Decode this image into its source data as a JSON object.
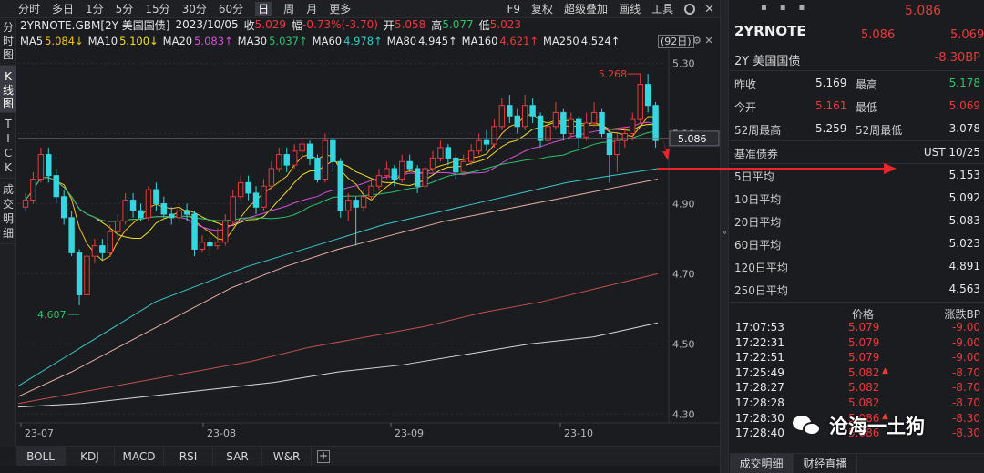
{
  "toolbar": {
    "periods": [
      "分时",
      "多日",
      "1分",
      "5分",
      "15分",
      "30分",
      "60分",
      "日",
      "周",
      "月",
      "更多"
    ],
    "active_period": "日",
    "right": [
      "F9",
      "复权",
      "超级叠加",
      "画线",
      "工具"
    ]
  },
  "left_tabs": [
    "分时图",
    "K线图",
    "TICK",
    "成交明细"
  ],
  "info": {
    "symbol": "2YRNOTE.GBM[2Y 美国国债]",
    "date": "2023/10/05",
    "close_label": "收",
    "close": "5.029",
    "change_label": "幅",
    "change": "-0.73%(-3.70)",
    "open_label": "开",
    "open": "5.058",
    "high_label": "高",
    "high": "5.077",
    "low_label": "低",
    "low": "5.023"
  },
  "ma_legend": [
    {
      "label": "MA5",
      "value": "5.084↓",
      "color": "#e8e8e8",
      "vcolor": "#f0c419"
    },
    {
      "label": "MA10",
      "value": "5.100↓",
      "color": "#e8e8e8",
      "vcolor": "#f0e020"
    },
    {
      "label": "MA20",
      "value": "5.083↑",
      "color": "#e8e8e8",
      "vcolor": "#d84fd8"
    },
    {
      "label": "MA30",
      "value": "5.037↑",
      "color": "#e8e8e8",
      "vcolor": "#2bc46b"
    },
    {
      "label": "MA60",
      "value": "4.978↑",
      "color": "#e8e8e8",
      "vcolor": "#39c8c8"
    },
    {
      "label": "MA80",
      "value": "4.945↑",
      "color": "#e8e8e8",
      "vcolor": "#e8e8e8"
    },
    {
      "label": "MA160",
      "value": "4.621↑",
      "color": "#e8e8e8",
      "vcolor": "#e83b3b"
    },
    {
      "label": "MA250",
      "value": "4.524↑",
      "color": "#e8e8e8",
      "vcolor": "#e8e8e8"
    }
  ],
  "range_pill": "(92日)",
  "chart_data": {
    "type": "candlestick",
    "y_ticks": [
      "5.30",
      "5.10",
      "4.90",
      "4.70",
      "4.50",
      "4.30"
    ],
    "ylim": [
      4.28,
      5.33
    ],
    "x_ticks": [
      "23-07",
      "23-08",
      "23-09",
      "23-10"
    ],
    "current_price_label": "5.086",
    "high_annotation": "5.268",
    "low_annotation": "4.607",
    "candles": [
      [
        4.89,
        4.91,
        4.93,
        4.88
      ],
      [
        4.91,
        4.97,
        4.99,
        4.9
      ],
      [
        4.97,
        5.04,
        5.06,
        4.96
      ],
      [
        5.04,
        4.98,
        5.06,
        4.96
      ],
      [
        4.98,
        4.92,
        5.0,
        4.9
      ],
      [
        4.92,
        4.86,
        4.94,
        4.84
      ],
      [
        4.86,
        4.76,
        4.88,
        4.75
      ],
      [
        4.76,
        4.64,
        4.77,
        4.61
      ],
      [
        4.64,
        4.75,
        4.77,
        4.63
      ],
      [
        4.75,
        4.78,
        4.8,
        4.73
      ],
      [
        4.78,
        4.76,
        4.8,
        4.74
      ],
      [
        4.76,
        4.82,
        4.84,
        4.75
      ],
      [
        4.82,
        4.85,
        4.87,
        4.8
      ],
      [
        4.85,
        4.91,
        4.93,
        4.84
      ],
      [
        4.91,
        4.88,
        4.93,
        4.86
      ],
      [
        4.88,
        4.86,
        4.9,
        4.85
      ],
      [
        4.86,
        4.94,
        4.95,
        4.85
      ],
      [
        4.94,
        4.9,
        4.96,
        4.88
      ],
      [
        4.9,
        4.87,
        4.92,
        4.86
      ],
      [
        4.87,
        4.86,
        4.89,
        4.84
      ],
      [
        4.86,
        4.88,
        4.9,
        4.85
      ],
      [
        4.88,
        4.87,
        4.9,
        4.85
      ],
      [
        4.87,
        4.77,
        4.88,
        4.75
      ],
      [
        4.77,
        4.79,
        4.81,
        4.76
      ],
      [
        4.79,
        4.78,
        4.81,
        4.75
      ],
      [
        4.78,
        4.79,
        4.83,
        4.77
      ],
      [
        4.79,
        4.85,
        4.87,
        4.78
      ],
      [
        4.85,
        4.92,
        4.94,
        4.84
      ],
      [
        4.92,
        4.96,
        4.98,
        4.91
      ],
      [
        4.96,
        4.93,
        4.98,
        4.91
      ],
      [
        4.93,
        4.89,
        4.95,
        4.87
      ],
      [
        4.89,
        4.95,
        4.97,
        4.88
      ],
      [
        4.95,
        5.0,
        5.02,
        4.94
      ],
      [
        5.0,
        5.04,
        5.06,
        4.99
      ],
      [
        5.04,
        5.01,
        5.06,
        4.99
      ],
      [
        5.01,
        5.05,
        5.07,
        5.0
      ],
      [
        5.05,
        5.07,
        5.09,
        5.03
      ],
      [
        5.07,
        5.03,
        5.08,
        5.01
      ],
      [
        5.03,
        4.97,
        5.04,
        4.96
      ],
      [
        4.97,
        5.08,
        5.1,
        4.96
      ],
      [
        5.08,
        5.02,
        5.09,
        4.99
      ],
      [
        5.02,
        4.88,
        5.03,
        4.86
      ],
      [
        4.88,
        4.91,
        4.93,
        4.85
      ],
      [
        4.91,
        4.89,
        4.92,
        4.78
      ],
      [
        4.89,
        4.92,
        4.94,
        4.88
      ],
      [
        4.92,
        4.95,
        4.97,
        4.91
      ],
      [
        4.95,
        4.98,
        5.0,
        4.94
      ],
      [
        4.98,
        5.0,
        5.02,
        4.97
      ],
      [
        5.0,
        4.97,
        5.01,
        4.95
      ],
      [
        4.97,
        5.02,
        5.04,
        4.96
      ],
      [
        5.02,
        5.0,
        5.04,
        4.99
      ],
      [
        5.0,
        4.95,
        5.01,
        4.93
      ],
      [
        4.95,
        5.0,
        5.02,
        4.94
      ],
      [
        5.0,
        5.03,
        5.05,
        4.99
      ],
      [
        5.03,
        5.06,
        5.08,
        5.02
      ],
      [
        5.06,
        5.03,
        5.07,
        5.01
      ],
      [
        5.03,
        4.99,
        5.04,
        4.97
      ],
      [
        4.99,
        5.02,
        5.04,
        4.98
      ],
      [
        5.02,
        5.05,
        5.07,
        5.01
      ],
      [
        5.05,
        5.08,
        5.1,
        5.04
      ],
      [
        5.08,
        5.07,
        5.11,
        5.05
      ],
      [
        5.07,
        5.12,
        5.14,
        5.06
      ],
      [
        5.12,
        5.18,
        5.2,
        5.11
      ],
      [
        5.18,
        5.15,
        5.21,
        5.13
      ],
      [
        5.15,
        5.12,
        5.17,
        5.1
      ],
      [
        5.12,
        5.18,
        5.21,
        5.11
      ],
      [
        5.18,
        5.15,
        5.2,
        5.13
      ],
      [
        5.15,
        5.08,
        5.16,
        5.06
      ],
      [
        5.08,
        5.12,
        5.14,
        5.07
      ],
      [
        5.12,
        5.16,
        5.19,
        5.11
      ],
      [
        5.16,
        5.1,
        5.17,
        5.08
      ],
      [
        5.1,
        5.14,
        5.16,
        5.09
      ],
      [
        5.14,
        5.09,
        5.15,
        5.06
      ],
      [
        5.09,
        5.13,
        5.16,
        5.08
      ],
      [
        5.13,
        5.16,
        5.19,
        5.12
      ],
      [
        5.16,
        5.1,
        5.17,
        5.09
      ],
      [
        5.1,
        5.04,
        5.11,
        4.96
      ],
      [
        5.04,
        5.08,
        5.1,
        4.99
      ],
      [
        5.08,
        5.1,
        5.12,
        5.06
      ],
      [
        5.1,
        5.14,
        5.16,
        5.08
      ],
      [
        5.14,
        5.24,
        5.27,
        5.13
      ],
      [
        5.24,
        5.18,
        5.27,
        5.16
      ],
      [
        5.18,
        5.08,
        5.19,
        5.06
      ]
    ],
    "ma_lines": [
      {
        "name": "MA5",
        "color": "#f0c419"
      },
      {
        "name": "MA10",
        "color": "#f0e020"
      },
      {
        "name": "MA20",
        "color": "#d84fd8"
      },
      {
        "name": "MA30",
        "color": "#2bc46b"
      },
      {
        "name": "MA60",
        "color": "#39c8c8",
        "values": [
          4.38,
          4.46,
          4.54,
          4.62,
          4.67,
          4.72,
          4.76,
          4.8,
          4.84,
          4.87,
          4.9,
          4.93,
          4.96,
          4.98,
          5.0
        ]
      },
      {
        "name": "MA160",
        "color": "#c0504d",
        "values": [
          4.33,
          4.36,
          4.39,
          4.42,
          4.45,
          4.49,
          4.52,
          4.55,
          4.59,
          4.62,
          4.66,
          4.7
        ]
      },
      {
        "name": "MA250",
        "color": "#d8d8d8",
        "values": [
          4.32,
          4.33,
          4.35,
          4.37,
          4.39,
          4.42,
          4.44,
          4.47,
          4.5,
          4.52,
          4.56
        ]
      },
      {
        "name": "MA80",
        "color": "#e8b0a0",
        "values": [
          4.35,
          4.42,
          4.5,
          4.58,
          4.66,
          4.72,
          4.77,
          4.81,
          4.85,
          4.88,
          4.91,
          4.94,
          4.97
        ]
      }
    ]
  },
  "bottom_tabs": [
    "BOLL",
    "KDJ",
    "MACD",
    "RSI",
    "SAR",
    "W&R"
  ],
  "bottom_plus": "+",
  "quote": {
    "top_price": "5.086",
    "symbol": "2YRNOTE",
    "bid": "5.086",
    "ask": "5.069",
    "name": "2Y 美国国债",
    "change_bp": "-8.30BP",
    "prev_close_label": "昨收",
    "prev_close": "5.169",
    "high_label": "最高",
    "high": "5.178",
    "open_label": "今开",
    "open": "5.161",
    "low_label": "最低",
    "low": "5.069",
    "w52_high_label": "52周最高",
    "w52_high": "5.259",
    "w52_low_label": "52周最低",
    "w52_low": "3.078",
    "benchmark_label": "基准债券",
    "benchmark": "UST 10/25"
  },
  "ma_table": [
    {
      "label": "5日平均",
      "value": "5.153"
    },
    {
      "label": "10日平均",
      "value": "5.092"
    },
    {
      "label": "20日平均",
      "value": "5.083"
    },
    {
      "label": "60日平均",
      "value": "5.023"
    },
    {
      "label": "120日平均",
      "value": "4.891"
    },
    {
      "label": "250日平均",
      "value": "4.563"
    }
  ],
  "ticks_header": {
    "price": "价格",
    "change": "涨跌BP"
  },
  "ticks": [
    {
      "time": "17:07:53",
      "price": "5.079",
      "up": false,
      "bp": "-9.00"
    },
    {
      "time": "17:22:31",
      "price": "5.079",
      "up": false,
      "bp": "-9.00"
    },
    {
      "time": "17:22:51",
      "price": "5.079",
      "up": false,
      "bp": "-9.00"
    },
    {
      "time": "17:25:49",
      "price": "5.082",
      "up": true,
      "bp": "-8.70"
    },
    {
      "time": "17:28:27",
      "price": "5.082",
      "up": false,
      "bp": "-8.70"
    },
    {
      "time": "17:28:28",
      "price": "5.082",
      "up": false,
      "bp": "-8.70"
    },
    {
      "time": "17:28:30",
      "price": "5.086",
      "up": true,
      "bp": "-8.30"
    },
    {
      "time": "17:28:40",
      "price": "5.086",
      "up": false,
      "bp": "-8.30"
    }
  ],
  "right_tabs": [
    "成交明细",
    "财经直播"
  ],
  "watermark": "沧海一土狗"
}
